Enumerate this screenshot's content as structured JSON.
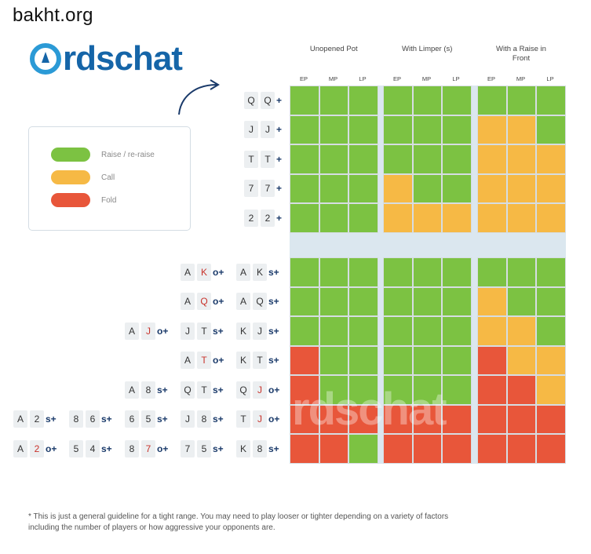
{
  "site_label": "bakht.org",
  "logo_text": "rdschat",
  "watermark_text": "rdschat",
  "legend": [
    {
      "label": "Raise / re-raise",
      "color": "#7cc242"
    },
    {
      "label": "Call",
      "color": "#f6b945"
    },
    {
      "label": "Fold",
      "color": "#e8563a"
    }
  ],
  "column_groups": [
    {
      "title": "Unopened Pot"
    },
    {
      "title": "With Limper (s)"
    },
    {
      "title": "With a Raise in Front"
    }
  ],
  "positions": [
    "EP",
    "MP",
    "LP"
  ],
  "colors": {
    "R": "#7cc242",
    "C": "#f6b945",
    "F": "#e8563a"
  },
  "pair_rows": [
    {
      "hands": [
        {
          "cards": [
            {
              "r": "Q"
            },
            {
              "r": "Q"
            }
          ],
          "suffix": "+"
        }
      ],
      "actions": [
        "R",
        "R",
        "R",
        "R",
        "R",
        "R",
        "R",
        "R",
        "R"
      ]
    },
    {
      "hands": [
        {
          "cards": [
            {
              "r": "J"
            },
            {
              "r": "J"
            }
          ],
          "suffix": "+"
        }
      ],
      "actions": [
        "R",
        "R",
        "R",
        "R",
        "R",
        "R",
        "C",
        "C",
        "R"
      ]
    },
    {
      "hands": [
        {
          "cards": [
            {
              "r": "T"
            },
            {
              "r": "T"
            }
          ],
          "suffix": "+"
        }
      ],
      "actions": [
        "R",
        "R",
        "R",
        "R",
        "R",
        "R",
        "C",
        "C",
        "C"
      ]
    },
    {
      "hands": [
        {
          "cards": [
            {
              "r": "7"
            },
            {
              "r": "7"
            }
          ],
          "suffix": "+"
        }
      ],
      "actions": [
        "R",
        "R",
        "R",
        "C",
        "R",
        "R",
        "C",
        "C",
        "C"
      ]
    },
    {
      "hands": [
        {
          "cards": [
            {
              "r": "2"
            },
            {
              "r": "2"
            }
          ],
          "suffix": "+"
        }
      ],
      "actions": [
        "R",
        "R",
        "R",
        "C",
        "C",
        "C",
        "C",
        "C",
        "C"
      ]
    }
  ],
  "hand_rows": [
    {
      "hands": [
        {
          "cards": [
            {
              "r": "A"
            },
            {
              "r": "K",
              "red": true
            }
          ],
          "suffix": "o+"
        },
        {
          "cards": [
            {
              "r": "A"
            },
            {
              "r": "K"
            }
          ],
          "suffix": "s+"
        }
      ],
      "actions": [
        "R",
        "R",
        "R",
        "R",
        "R",
        "R",
        "R",
        "R",
        "R"
      ]
    },
    {
      "hands": [
        {
          "cards": [
            {
              "r": "A"
            },
            {
              "r": "Q",
              "red": true
            }
          ],
          "suffix": "o+"
        },
        {
          "cards": [
            {
              "r": "A"
            },
            {
              "r": "Q"
            }
          ],
          "suffix": "s+"
        }
      ],
      "actions": [
        "R",
        "R",
        "R",
        "R",
        "R",
        "R",
        "C",
        "R",
        "R"
      ]
    },
    {
      "hands": [
        {
          "cards": [
            {
              "r": "A"
            },
            {
              "r": "J",
              "red": true
            }
          ],
          "suffix": "o+"
        },
        {
          "cards": [
            {
              "r": "J"
            },
            {
              "r": "T"
            }
          ],
          "suffix": "s+"
        },
        {
          "cards": [
            {
              "r": "K"
            },
            {
              "r": "J"
            }
          ],
          "suffix": "s+"
        }
      ],
      "actions": [
        "R",
        "R",
        "R",
        "R",
        "R",
        "R",
        "C",
        "C",
        "R"
      ]
    },
    {
      "hands": [
        {
          "cards": [
            {
              "r": "A"
            },
            {
              "r": "T",
              "red": true
            }
          ],
          "suffix": "o+"
        },
        {
          "cards": [
            {
              "r": "K"
            },
            {
              "r": "T"
            }
          ],
          "suffix": "s+"
        }
      ],
      "actions": [
        "F",
        "R",
        "R",
        "R",
        "R",
        "R",
        "F",
        "C",
        "C"
      ]
    },
    {
      "hands": [
        {
          "cards": [
            {
              "r": "A"
            },
            {
              "r": "8"
            }
          ],
          "suffix": "s+"
        },
        {
          "cards": [
            {
              "r": "Q"
            },
            {
              "r": "T"
            }
          ],
          "suffix": "s+"
        },
        {
          "cards": [
            {
              "r": "Q"
            },
            {
              "r": "J",
              "red": true
            }
          ],
          "suffix": "o+"
        }
      ],
      "actions": [
        "F",
        "R",
        "R",
        "R",
        "R",
        "R",
        "F",
        "F",
        "C"
      ]
    },
    {
      "hands": [
        {
          "cards": [
            {
              "r": "A"
            },
            {
              "r": "2"
            }
          ],
          "suffix": "s+"
        },
        {
          "cards": [
            {
              "r": "8"
            },
            {
              "r": "6"
            }
          ],
          "suffix": "s+"
        },
        {
          "cards": [
            {
              "r": "6"
            },
            {
              "r": "5"
            }
          ],
          "suffix": "s+"
        },
        {
          "cards": [
            {
              "r": "J"
            },
            {
              "r": "8"
            }
          ],
          "suffix": "s+"
        },
        {
          "cards": [
            {
              "r": "T"
            },
            {
              "r": "J",
              "red": true
            }
          ],
          "suffix": "o+"
        }
      ],
      "actions": [
        "F",
        "F",
        "F",
        "F",
        "F",
        "F",
        "F",
        "F",
        "F"
      ]
    },
    {
      "hands": [
        {
          "cards": [
            {
              "r": "A"
            },
            {
              "r": "2",
              "red": true
            }
          ],
          "suffix": "o+"
        },
        {
          "cards": [
            {
              "r": "5"
            },
            {
              "r": "4"
            }
          ],
          "suffix": "s+"
        },
        {
          "cards": [
            {
              "r": "8"
            },
            {
              "r": "7",
              "red": true
            }
          ],
          "suffix": "o+"
        },
        {
          "cards": [
            {
              "r": "7"
            },
            {
              "r": "5"
            }
          ],
          "suffix": "s+"
        },
        {
          "cards": [
            {
              "r": "K"
            },
            {
              "r": "8"
            }
          ],
          "suffix": "s+"
        }
      ],
      "actions": [
        "F",
        "F",
        "R",
        "F",
        "F",
        "F",
        "F",
        "F",
        "F"
      ]
    }
  ],
  "footnote": "* This is just a general guideline for a tight range. You may need to play looser or tighter depending on a variety of factors including the number of players or how aggressive your opponents are."
}
